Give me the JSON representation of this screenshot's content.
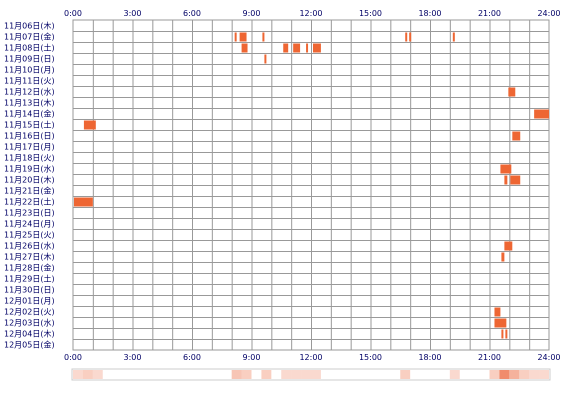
{
  "chart_data": {
    "type": "heatmap",
    "time_ticks": [
      "0:00",
      "3:00",
      "6:00",
      "9:00",
      "12:00",
      "15:00",
      "18:00",
      "21:00",
      "24:00"
    ],
    "rows": [
      {
        "label": "11月06日(木)",
        "events": []
      },
      {
        "label": "11月07日(金)",
        "events": [
          [
            8.1,
            8.2
          ],
          [
            8.35,
            8.75
          ],
          [
            9.5,
            9.65
          ],
          [
            16.7,
            16.85
          ],
          [
            16.9,
            17.0
          ],
          [
            19.1,
            19.2
          ]
        ]
      },
      {
        "label": "11月08日(土)",
        "events": [
          [
            8.45,
            8.8
          ],
          [
            10.55,
            10.85
          ],
          [
            11.05,
            11.45
          ],
          [
            11.7,
            11.85
          ],
          [
            12.05,
            12.5
          ]
        ]
      },
      {
        "label": "11月09日(日)",
        "events": [
          [
            9.6,
            9.7
          ]
        ]
      },
      {
        "label": "11月10日(月)",
        "events": []
      },
      {
        "label": "11月11日(火)",
        "events": []
      },
      {
        "label": "11月12日(水)",
        "events": [
          [
            21.9,
            22.3
          ]
        ]
      },
      {
        "label": "11月13日(木)",
        "events": []
      },
      {
        "label": "11月14日(金)",
        "events": [
          [
            23.2,
            24.0
          ]
        ]
      },
      {
        "label": "11月15日(土)",
        "events": [
          [
            0.5,
            1.15
          ]
        ]
      },
      {
        "label": "11月16日(日)",
        "events": [
          [
            22.1,
            22.55
          ]
        ]
      },
      {
        "label": "11月17日(月)",
        "events": []
      },
      {
        "label": "11月18日(火)",
        "events": []
      },
      {
        "label": "11月19日(水)",
        "events": [
          [
            21.5,
            22.1
          ]
        ]
      },
      {
        "label": "11月20日(木)",
        "events": [
          [
            21.7,
            21.9
          ],
          [
            22.0,
            22.55
          ]
        ]
      },
      {
        "label": "11月21日(金)",
        "events": []
      },
      {
        "label": "11月22日(土)",
        "events": [
          [
            0.0,
            1.0
          ]
        ]
      },
      {
        "label": "11月23日(日)",
        "events": []
      },
      {
        "label": "11月24日(月)",
        "events": []
      },
      {
        "label": "11月25日(火)",
        "events": []
      },
      {
        "label": "11月26日(水)",
        "events": [
          [
            21.7,
            22.15
          ]
        ]
      },
      {
        "label": "11月27日(木)",
        "events": [
          [
            21.55,
            21.75
          ]
        ]
      },
      {
        "label": "11月28日(金)",
        "events": []
      },
      {
        "label": "11月29日(土)",
        "events": []
      },
      {
        "label": "11月30日(日)",
        "events": []
      },
      {
        "label": "12月01日(月)",
        "events": []
      },
      {
        "label": "12月02日(火)",
        "events": [
          [
            21.2,
            21.55
          ]
        ]
      },
      {
        "label": "12月03日(水)",
        "events": [
          [
            21.2,
            21.85
          ]
        ]
      },
      {
        "label": "12月04日(木)",
        "events": [
          [
            21.55,
            21.65
          ],
          [
            21.75,
            21.85
          ]
        ]
      },
      {
        "label": "12月05日(金)",
        "events": []
      }
    ],
    "xlim": [
      0,
      24
    ],
    "colors": {
      "event": "#ee6633",
      "grid": "#999999",
      "text": "#000066",
      "heat_light": "#fde8df",
      "heat_strong": "#f08c6c"
    }
  }
}
